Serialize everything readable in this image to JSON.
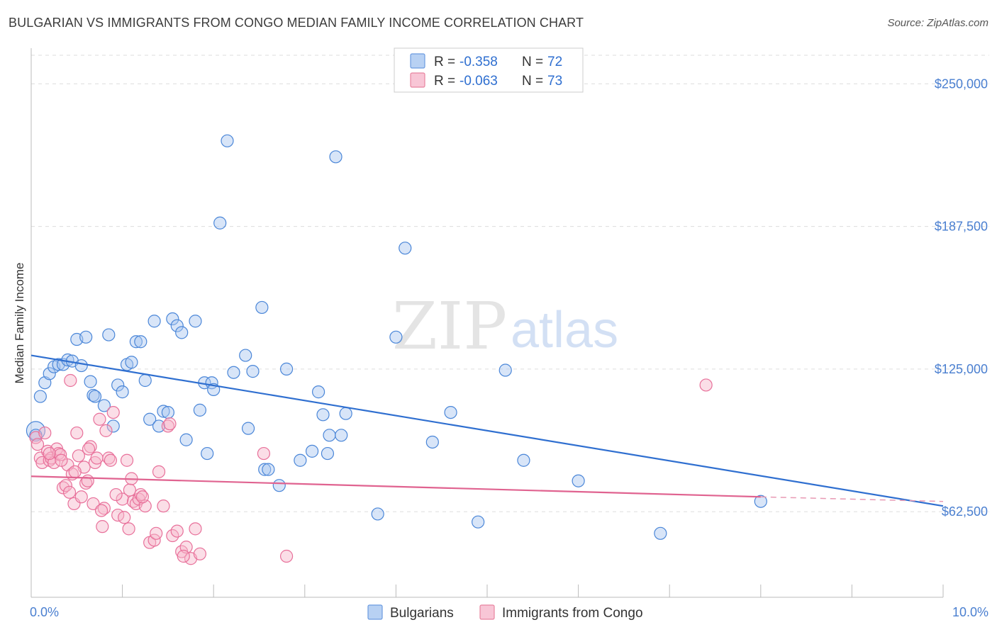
{
  "header": {
    "title": "BULGARIAN VS IMMIGRANTS FROM CONGO MEDIAN FAMILY INCOME CORRELATION CHART",
    "source": "Source: ZipAtlas.com"
  },
  "watermark": {
    "zip": "ZIP",
    "atlas": "atlas"
  },
  "colors": {
    "bulgarians": "#4a86d8",
    "bulgarians_fill": "#a9c6f0",
    "congo": "#e8709a",
    "congo_fill": "#f6b6ca",
    "tick": "#4a7fd0",
    "grid": "#dddddd"
  },
  "legend": {
    "rows": [
      {
        "r_label": "R =",
        "r_value": "-0.358",
        "n_label": "N =",
        "n_value": "72"
      },
      {
        "r_label": "R =",
        "r_value": "-0.063",
        "n_label": "N =",
        "n_value": "73"
      }
    ]
  },
  "bottom_legend": [
    "Bulgarians",
    "Immigrants from Congo"
  ],
  "chart_data": {
    "type": "scatter",
    "title": "BULGARIAN VS IMMIGRANTS FROM CONGO MEDIAN FAMILY INCOME CORRELATION CHART",
    "ylabel": "Median Family Income",
    "xlim": [
      0,
      10
    ],
    "ylim": [
      25000,
      262500
    ],
    "x_tick_labels": [
      {
        "value": 0,
        "label": "0.0%"
      },
      {
        "value": 10,
        "label": "10.0%"
      }
    ],
    "y_ticks": [
      {
        "value": 62500,
        "label": "$62,500"
      },
      {
        "value": 125000,
        "label": "$125,000"
      },
      {
        "value": 187500,
        "label": "$187,500"
      },
      {
        "value": 250000,
        "label": "$250,000"
      }
    ],
    "grid": "horizontal dashed",
    "legend_position": "top-center",
    "series": [
      {
        "name": "Bulgarians",
        "r": -0.358,
        "n": 72,
        "trend": {
          "x0": 0,
          "y0": 131000,
          "x1": 10,
          "y1": 65000
        },
        "points": [
          [
            0.05,
            98000
          ],
          [
            0.1,
            113000
          ],
          [
            0.15,
            119000
          ],
          [
            0.2,
            123000
          ],
          [
            0.25,
            126000
          ],
          [
            0.3,
            127000
          ],
          [
            0.35,
            127000
          ],
          [
            0.4,
            129000
          ],
          [
            0.45,
            128500
          ],
          [
            0.5,
            138000
          ],
          [
            0.55,
            126500
          ],
          [
            0.6,
            139000
          ],
          [
            0.65,
            119500
          ],
          [
            0.68,
            113500
          ],
          [
            0.7,
            113000
          ],
          [
            0.8,
            109000
          ],
          [
            0.85,
            140000
          ],
          [
            0.9,
            100000
          ],
          [
            0.95,
            118000
          ],
          [
            1.0,
            115000
          ],
          [
            1.05,
            127000
          ],
          [
            1.1,
            128000
          ],
          [
            1.15,
            137000
          ],
          [
            1.2,
            137000
          ],
          [
            1.25,
            120000
          ],
          [
            1.3,
            103000
          ],
          [
            1.35,
            146000
          ],
          [
            1.4,
            100000
          ],
          [
            1.45,
            106500
          ],
          [
            1.5,
            106000
          ],
          [
            1.55,
            147000
          ],
          [
            1.6,
            144000
          ],
          [
            1.65,
            141000
          ],
          [
            1.7,
            94000
          ],
          [
            1.8,
            146000
          ],
          [
            1.85,
            107000
          ],
          [
            1.9,
            119000
          ],
          [
            1.93,
            88000
          ],
          [
            1.98,
            119000
          ],
          [
            2.0,
            116000
          ],
          [
            2.07,
            189000
          ],
          [
            2.15,
            225000
          ],
          [
            2.22,
            123500
          ],
          [
            2.35,
            131000
          ],
          [
            2.38,
            99000
          ],
          [
            2.43,
            124000
          ],
          [
            2.53,
            152000
          ],
          [
            2.56,
            81000
          ],
          [
            2.6,
            81000
          ],
          [
            2.72,
            74000
          ],
          [
            2.8,
            125000
          ],
          [
            2.95,
            85000
          ],
          [
            3.08,
            89000
          ],
          [
            3.15,
            115000
          ],
          [
            3.2,
            105000
          ],
          [
            3.25,
            88000
          ],
          [
            3.27,
            96000
          ],
          [
            3.34,
            218000
          ],
          [
            3.4,
            96000
          ],
          [
            3.45,
            105500
          ],
          [
            3.8,
            61500
          ],
          [
            4.0,
            139000
          ],
          [
            4.1,
            178000
          ],
          [
            4.4,
            93000
          ],
          [
            4.6,
            106000
          ],
          [
            4.9,
            58000
          ],
          [
            5.2,
            124500
          ],
          [
            5.4,
            85000
          ],
          [
            6.0,
            76000
          ],
          [
            6.9,
            53000
          ],
          [
            8.0,
            67000
          ],
          [
            0.05,
            96000
          ]
        ]
      },
      {
        "name": "Immigrants from Congo",
        "r": -0.063,
        "n": 73,
        "trend": {
          "x0": 0,
          "y0": 78000,
          "x1": 8.0,
          "y1": 69000,
          "dashed_to": 10,
          "dashed_y": 67000
        },
        "points": [
          [
            0.05,
            95000
          ],
          [
            0.07,
            92000
          ],
          [
            0.1,
            86000
          ],
          [
            0.12,
            84000
          ],
          [
            0.15,
            97000
          ],
          [
            0.18,
            89000
          ],
          [
            0.2,
            85000
          ],
          [
            0.22,
            86000
          ],
          [
            0.25,
            84000
          ],
          [
            0.28,
            90000
          ],
          [
            0.3,
            88000
          ],
          [
            0.32,
            87500
          ],
          [
            0.35,
            73000
          ],
          [
            0.38,
            74000
          ],
          [
            0.4,
            83000
          ],
          [
            0.42,
            71000
          ],
          [
            0.45,
            79000
          ],
          [
            0.47,
            66000
          ],
          [
            0.5,
            97000
          ],
          [
            0.52,
            87000
          ],
          [
            0.55,
            69000
          ],
          [
            0.58,
            82000
          ],
          [
            0.6,
            75000
          ],
          [
            0.62,
            76000
          ],
          [
            0.65,
            91000
          ],
          [
            0.68,
            66000
          ],
          [
            0.7,
            84000
          ],
          [
            0.72,
            86000
          ],
          [
            0.75,
            103000
          ],
          [
            0.78,
            56000
          ],
          [
            0.8,
            64000
          ],
          [
            0.82,
            98000
          ],
          [
            0.85,
            86000
          ],
          [
            0.87,
            85000
          ],
          [
            0.9,
            106000
          ],
          [
            0.95,
            61000
          ],
          [
            1.0,
            68000
          ],
          [
            1.02,
            60000
          ],
          [
            1.05,
            85000
          ],
          [
            1.08,
            72000
          ],
          [
            1.1,
            77000
          ],
          [
            1.12,
            67000
          ],
          [
            1.15,
            66000
          ],
          [
            1.18,
            68000
          ],
          [
            1.2,
            70000
          ],
          [
            1.25,
            65000
          ],
          [
            1.3,
            49000
          ],
          [
            1.35,
            50000
          ],
          [
            1.4,
            80000
          ],
          [
            1.45,
            65000
          ],
          [
            1.5,
            100000
          ],
          [
            1.55,
            52000
          ],
          [
            1.6,
            54000
          ],
          [
            1.65,
            45000
          ],
          [
            1.7,
            47000
          ],
          [
            1.75,
            42000
          ],
          [
            1.8,
            55000
          ],
          [
            1.85,
            44000
          ],
          [
            2.55,
            88000
          ],
          [
            2.8,
            43000
          ],
          [
            7.4,
            118000
          ],
          [
            0.43,
            120000
          ],
          [
            0.2,
            88000
          ],
          [
            0.33,
            85000
          ],
          [
            0.48,
            80000
          ],
          [
            0.63,
            90000
          ],
          [
            0.77,
            63000
          ],
          [
            0.93,
            70000
          ],
          [
            1.07,
            55000
          ],
          [
            1.22,
            69000
          ],
          [
            1.37,
            53000
          ],
          [
            1.52,
            101000
          ],
          [
            1.67,
            43000
          ]
        ]
      }
    ]
  }
}
